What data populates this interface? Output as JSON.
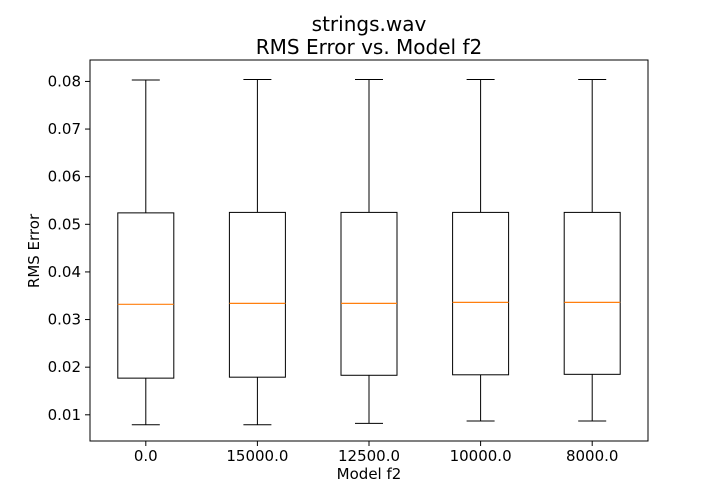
{
  "chart_data": {
    "type": "box",
    "title": "strings.wav",
    "subtitle": "RMS Error vs. Model f2",
    "xlabel": "Model f2",
    "ylabel": "RMS Error",
    "categories": [
      "0.0",
      "15000.0",
      "12500.0",
      "10000.0",
      "8000.0"
    ],
    "ylim": [
      0.0045,
      0.0845
    ],
    "yticks": [
      0.01,
      0.02,
      0.03,
      0.04,
      0.05,
      0.06,
      0.07,
      0.08
    ],
    "ytick_labels": [
      "0.01",
      "0.02",
      "0.03",
      "0.04",
      "0.05",
      "0.06",
      "0.07",
      "0.08"
    ],
    "grid": false,
    "boxes": [
      {
        "whisker_low": 0.0079,
        "q1": 0.0177,
        "median": 0.0332,
        "q3": 0.0524,
        "whisker_high": 0.0803
      },
      {
        "whisker_low": 0.0079,
        "q1": 0.0179,
        "median": 0.0334,
        "q3": 0.0525,
        "whisker_high": 0.0804
      },
      {
        "whisker_low": 0.0082,
        "q1": 0.0183,
        "median": 0.0334,
        "q3": 0.0525,
        "whisker_high": 0.0804
      },
      {
        "whisker_low": 0.0087,
        "q1": 0.0184,
        "median": 0.0336,
        "q3": 0.0525,
        "whisker_high": 0.0804
      },
      {
        "whisker_low": 0.0087,
        "q1": 0.0185,
        "median": 0.0336,
        "q3": 0.0525,
        "whisker_high": 0.0804
      }
    ],
    "colors": {
      "box": "#000000",
      "median": "#ff7f0e",
      "background": "#ffffff"
    }
  }
}
